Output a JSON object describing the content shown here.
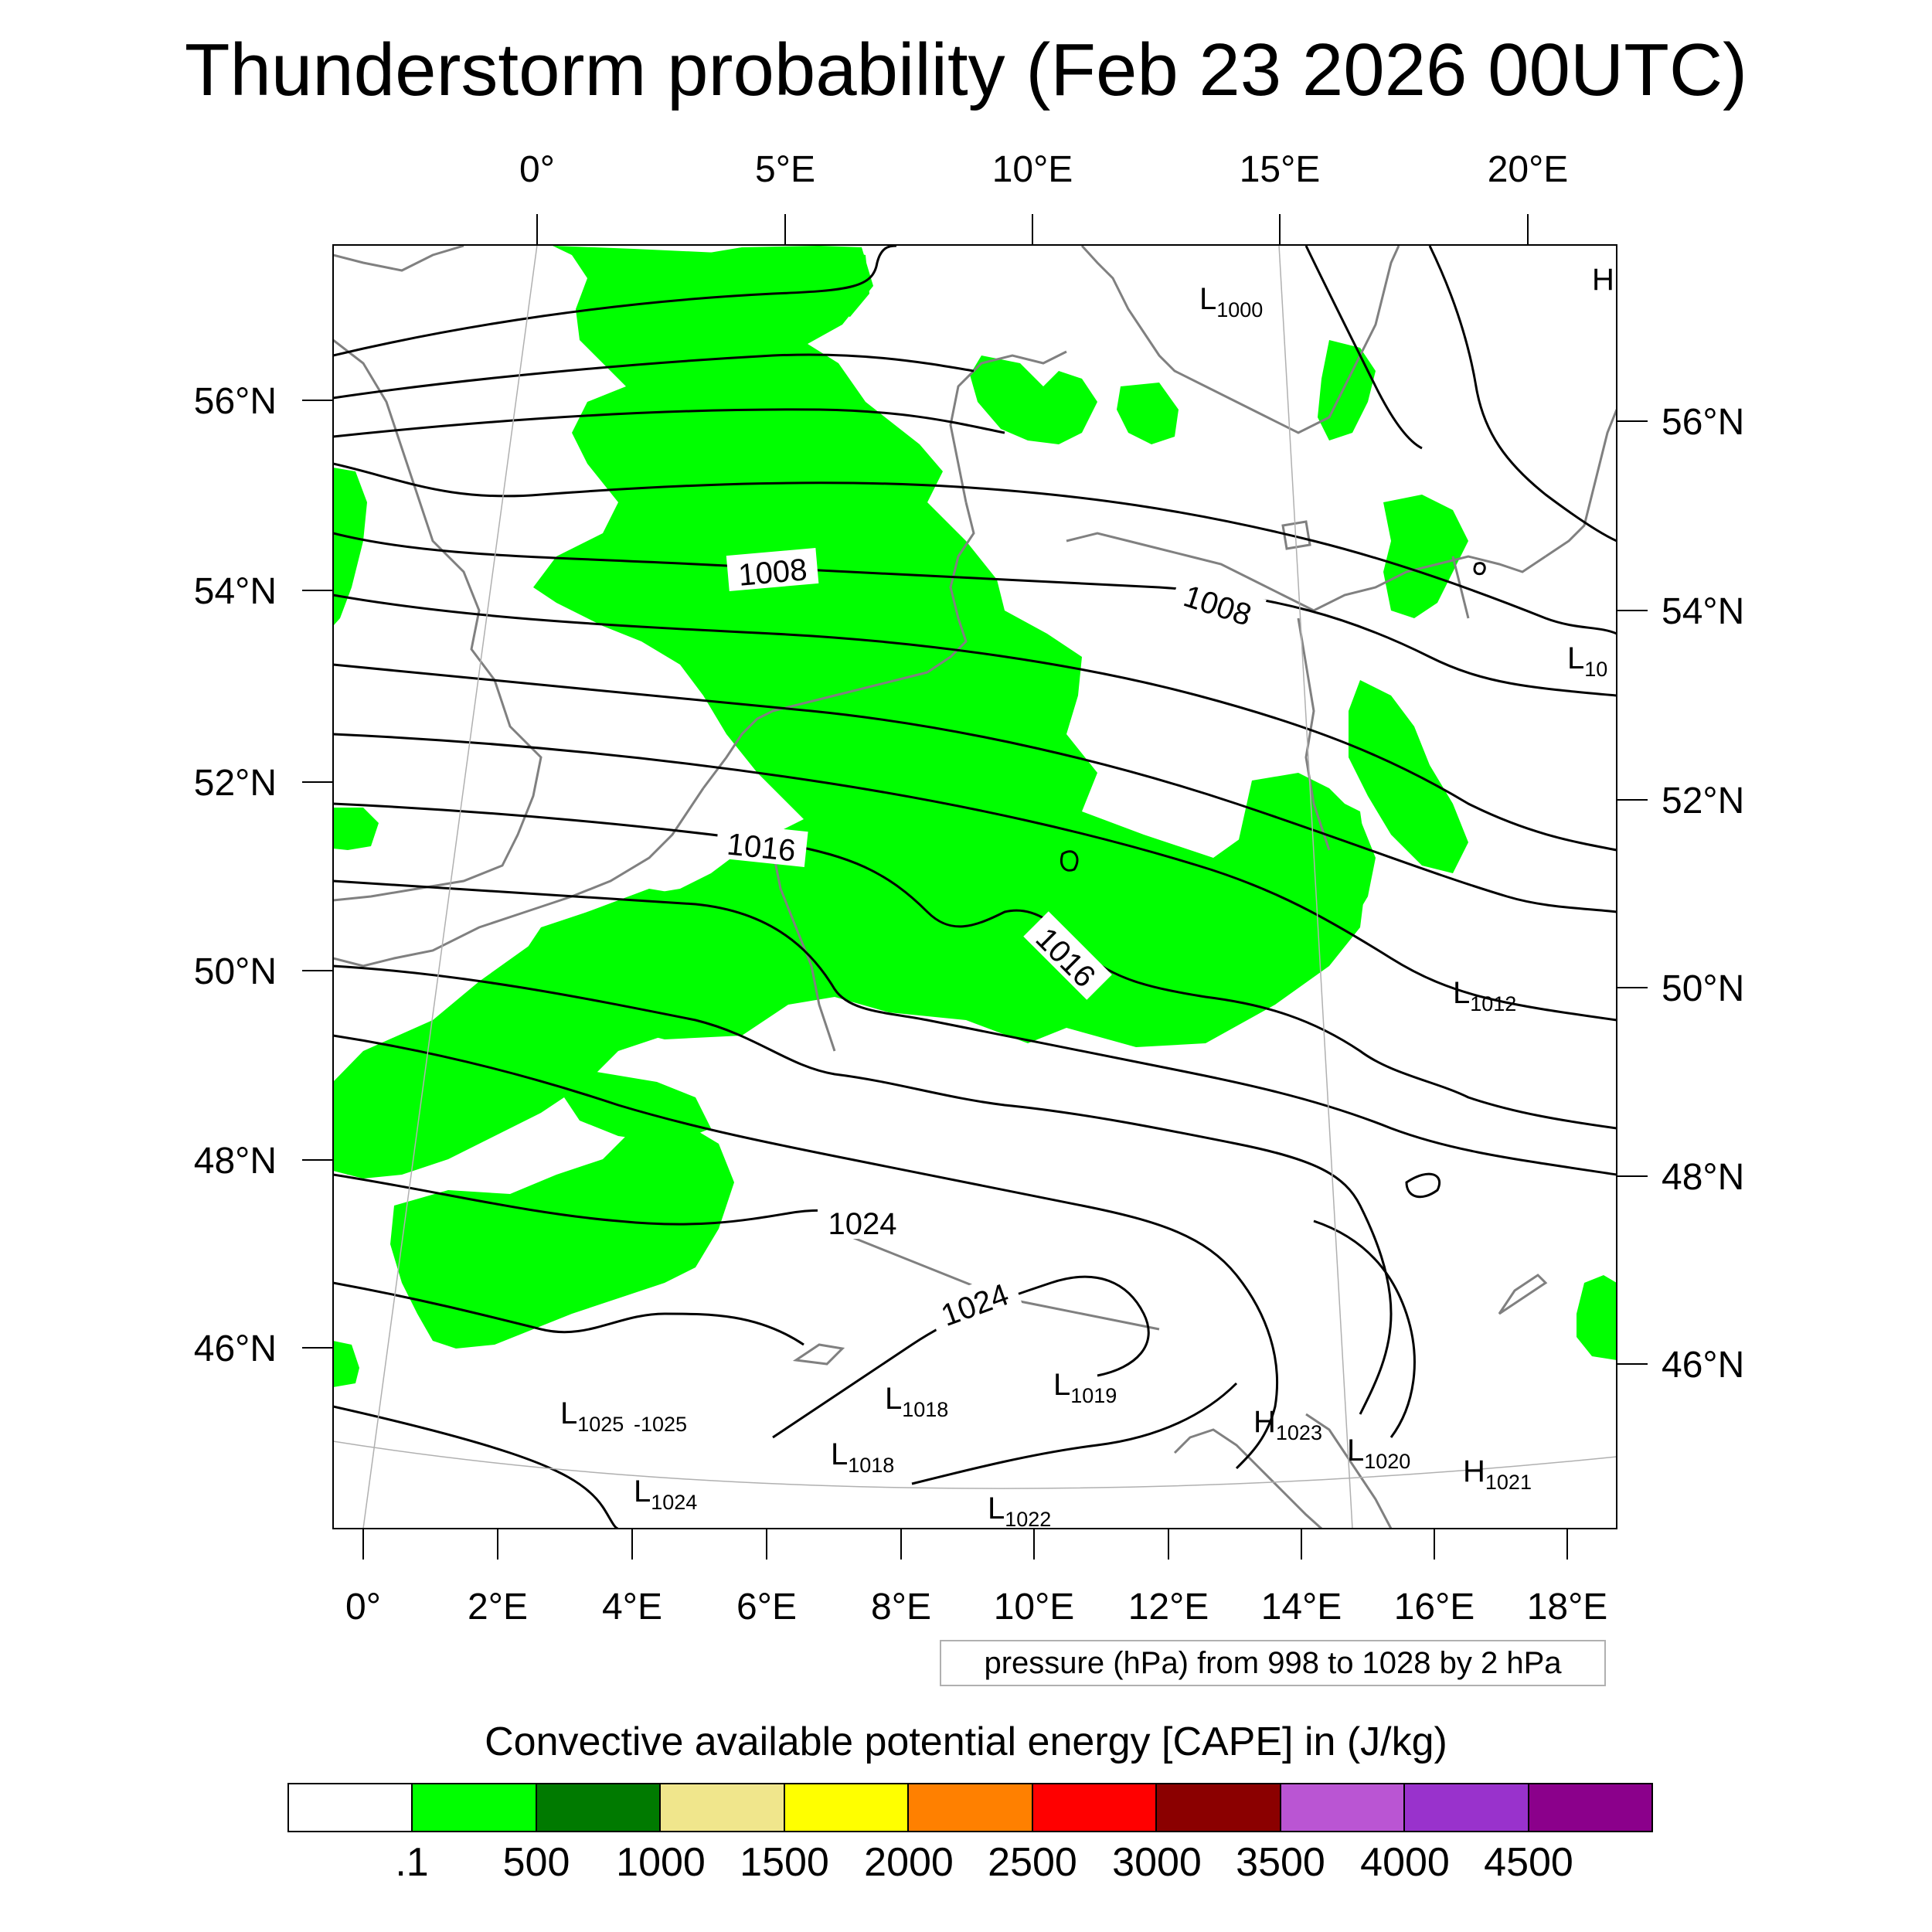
{
  "title": "Thunderstorm probability (Feb 23 2026 00UTC)",
  "map": {
    "projection": "lambert-conformal",
    "extent": {
      "lon_min": -0.5,
      "lon_max": 18.8,
      "lat_min": 44.8,
      "lat_max": 57.5
    },
    "top_lon_labels": [
      "0°",
      "5°E",
      "10°E",
      "15°E",
      "20°E"
    ],
    "bottom_lon_labels": [
      "0°",
      "2°E",
      "4°E",
      "6°E",
      "8°E",
      "10°E",
      "12°E",
      "14°E",
      "16°E",
      "18°E"
    ],
    "left_lat_labels": [
      "56°N",
      "54°N",
      "52°N",
      "50°N",
      "48°N",
      "46°N"
    ],
    "right_lat_labels": [
      "56°N",
      "54°N",
      "52°N",
      "50°N",
      "48°N",
      "46°N"
    ],
    "cape_fill_color": "#00ff00",
    "coastline_color": "#808080",
    "isobar_color": "#000000"
  },
  "isobar_labels": [
    {
      "id": "iso-1008-west",
      "text": "1008"
    },
    {
      "id": "iso-1008-east",
      "text": "1008"
    },
    {
      "id": "iso-1016-west",
      "text": "1016"
    },
    {
      "id": "iso-1016-center",
      "text": "1016"
    },
    {
      "id": "iso-1024-west",
      "text": "1024"
    },
    {
      "id": "iso-1024-alps",
      "text": "1024"
    }
  ],
  "pressure_centers": [
    {
      "type": "L",
      "value": "1000"
    },
    {
      "type": "H",
      "value": ""
    },
    {
      "type": "L",
      "value": "10"
    },
    {
      "type": "L",
      "value": "1012"
    },
    {
      "type": "L",
      "value": "1025"
    },
    {
      "type": "",
      "value": "-1025"
    },
    {
      "type": "L",
      "value": "1018"
    },
    {
      "type": "L",
      "value": "1019"
    },
    {
      "type": "L",
      "value": "1018"
    },
    {
      "type": "L",
      "value": "1024"
    },
    {
      "type": "L",
      "value": "1022"
    },
    {
      "type": "H",
      "value": "1023"
    },
    {
      "type": "L",
      "value": "1020"
    },
    {
      "type": "H",
      "value": "1021"
    }
  ],
  "pressure_note": "pressure (hPa) from 998 to 1028 by 2 hPa",
  "colorbar": {
    "title": "Convective available potential energy [CAPE] in (J/kg)",
    "colors": [
      "#ffffff",
      "#00ff00",
      "#007a00",
      "#f0e68c",
      "#ffff00",
      "#ff8000",
      "#ff0000",
      "#8b0000",
      "#ba55d3",
      "#9932cc",
      "#8b008b"
    ],
    "labels": [
      ".1",
      "500",
      "1000",
      "1500",
      "2000",
      "2500",
      "3000",
      "3500",
      "4000",
      "4500"
    ]
  }
}
